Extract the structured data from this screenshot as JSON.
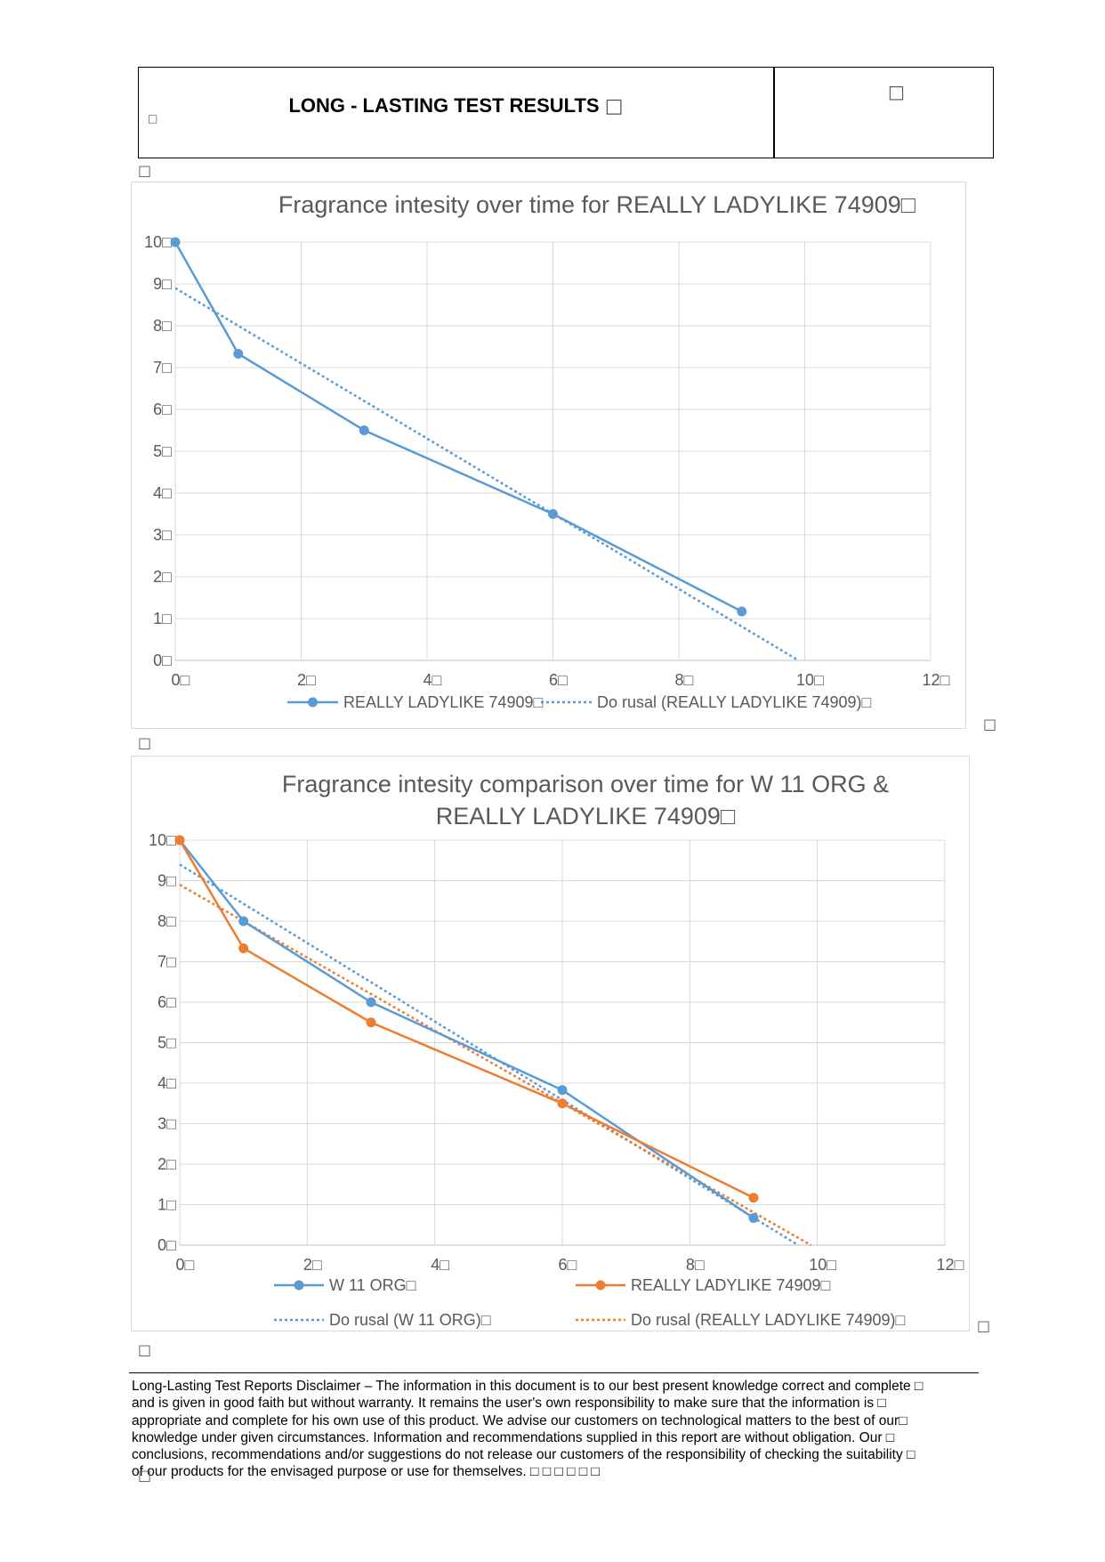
{
  "header": {
    "title": "LONG - LASTING TEST RESULTS",
    "glyph": "□"
  },
  "chart_data": [
    {
      "type": "line",
      "title": "Fragrance intesity over time for REALLY LADYLIKE 74909",
      "xlim": [
        0,
        12
      ],
      "ylim": [
        0,
        10
      ],
      "x_ticks": [
        0,
        2,
        4,
        6,
        8,
        10,
        12
      ],
      "y_ticks": [
        0,
        1,
        2,
        3,
        4,
        5,
        6,
        7,
        8,
        9,
        10
      ],
      "grid": true,
      "legend_position": "bottom",
      "series": [
        {
          "name": "REALLY LADYLIKE 74909",
          "color": "#5b9bd5",
          "style": "solid",
          "markers": true,
          "x": [
            0,
            1,
            3,
            6,
            9
          ],
          "y": [
            10,
            7.33,
            5.5,
            3.5,
            1.17
          ]
        },
        {
          "name": "Do rusal (REALLY LADYLIKE 74909)",
          "color": "#5b9bd5",
          "style": "dotted",
          "markers": false,
          "x": [
            0,
            9.9
          ],
          "y": [
            8.9,
            0
          ]
        }
      ]
    },
    {
      "type": "line",
      "title": "Fragrance intesity comparison over time for W 11 ORG & REALLY LADYLIKE 74909",
      "title_lines": [
        "Fragrance intesity comparison over time for W 11 ORG &",
        "REALLY LADYLIKE 74909"
      ],
      "xlim": [
        0,
        12
      ],
      "ylim": [
        0,
        10
      ],
      "x_ticks": [
        0,
        2,
        4,
        6,
        8,
        10,
        12
      ],
      "y_ticks": [
        0,
        1,
        2,
        3,
        4,
        5,
        6,
        7,
        8,
        9,
        10
      ],
      "grid": true,
      "legend_position": "bottom",
      "series": [
        {
          "name": "W 11 ORG",
          "color": "#5b9bd5",
          "style": "solid",
          "markers": true,
          "x": [
            0,
            1,
            3,
            6,
            9
          ],
          "y": [
            10,
            8,
            6,
            3.83,
            0.67
          ]
        },
        {
          "name": "REALLY LADYLIKE 74909",
          "color": "#ed7d31",
          "style": "solid",
          "markers": true,
          "x": [
            0,
            1,
            3,
            6,
            9
          ],
          "y": [
            10,
            7.33,
            5.5,
            3.5,
            1.17
          ]
        },
        {
          "name": "Do rusal (W 11 ORG)",
          "color": "#5b9bd5",
          "style": "dotted",
          "markers": false,
          "x": [
            0,
            9.7
          ],
          "y": [
            9.4,
            0
          ]
        },
        {
          "name": "Do rusal (REALLY LADYLIKE 74909)",
          "color": "#ed7d31",
          "style": "dotted",
          "markers": false,
          "x": [
            0,
            9.9
          ],
          "y": [
            8.9,
            0
          ]
        }
      ]
    }
  ],
  "disclaimer": "Long-Lasting Test Reports Disclaimer – The information in this document is to our best present knowledge correct and complete □\nand is given in good faith but without warranty. It remains the user's own responsibility to make sure that the information is □\nappropriate and complete for his own use of this product. We advise our customers on technological matters to the best of our□\nknowledge under given circumstances. Information and recommendations supplied in this report are without obligation. Our □\nconclusions, recommendations and/or suggestions do not release our customers of the responsibility of checking the suitability □\nof our products for the envisaged purpose or use for themselves.  □       □            □            □            □            □"
}
